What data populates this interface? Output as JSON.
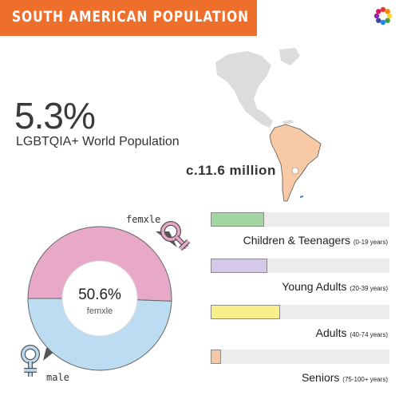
{
  "header": {
    "title": "SOUTH AMERICAN POPULATION"
  },
  "summary": {
    "percent": "5.3%",
    "percent_label": "LGBTQIA+ World Population",
    "count": "c.11.6 million"
  },
  "donut": {
    "center_value": "50.6%",
    "center_label": "femxle",
    "label_femxle": "femxle",
    "label_male": "male",
    "color_femxle": "#e8a9c9",
    "color_male": "#bcdcf2"
  },
  "map": {
    "highlight_color": "#f8c9a5",
    "base_color": "#dcdcdc"
  },
  "chart_data": [
    {
      "type": "pie",
      "categories": [
        "femxle",
        "male"
      ],
      "values": [
        50.6,
        49.4
      ]
    },
    {
      "type": "bar",
      "categories": [
        "Children & Teenagers",
        "Young Adults",
        "Adults",
        "Seniors"
      ],
      "category_ranges": [
        "(0-19 years)",
        "(20-39 years)",
        "(40-74 years)",
        "(75-100+ years)"
      ],
      "values": [
        29,
        31,
        38,
        5
      ],
      "xlim": [
        0,
        100
      ],
      "colors": [
        "#a3d5a3",
        "#d6c8e8",
        "#f8f08c",
        "#f5c6a8"
      ]
    }
  ]
}
